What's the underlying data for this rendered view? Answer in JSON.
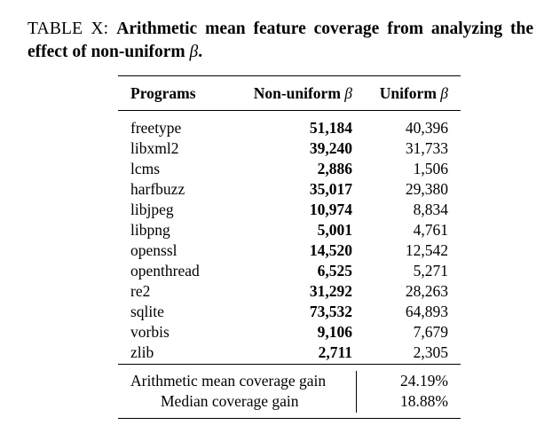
{
  "caption": {
    "label": "TABLE X:",
    "text": "Arithmetic mean feature coverage from analyzing the effect of non-uniform",
    "symbol": "β",
    "end": "."
  },
  "table": {
    "headers": {
      "programs": "Programs",
      "non_uniform": "Non-uniform",
      "uniform": "Uniform",
      "beta": "β"
    },
    "rows": [
      {
        "program": "freetype",
        "non_uniform": "51,184",
        "uniform": "40,396"
      },
      {
        "program": "libxml2",
        "non_uniform": "39,240",
        "uniform": "31,733"
      },
      {
        "program": "lcms",
        "non_uniform": "2,886",
        "uniform": "1,506"
      },
      {
        "program": "harfbuzz",
        "non_uniform": "35,017",
        "uniform": "29,380"
      },
      {
        "program": "libjpeg",
        "non_uniform": "10,974",
        "uniform": "8,834"
      },
      {
        "program": "libpng",
        "non_uniform": "5,001",
        "uniform": "4,761"
      },
      {
        "program": "openssl",
        "non_uniform": "14,520",
        "uniform": "12,542"
      },
      {
        "program": "openthread",
        "non_uniform": "6,525",
        "uniform": "5,271"
      },
      {
        "program": "re2",
        "non_uniform": "31,292",
        "uniform": "28,263"
      },
      {
        "program": "sqlite",
        "non_uniform": "73,532",
        "uniform": "64,893"
      },
      {
        "program": "vorbis",
        "non_uniform": "9,106",
        "uniform": "7,679"
      },
      {
        "program": "zlib",
        "non_uniform": "2,711",
        "uniform": "2,305"
      }
    ],
    "summary": [
      {
        "label": "Arithmetic mean coverage gain",
        "value": "24.19%"
      },
      {
        "label": "Median coverage gain",
        "value": "18.88%"
      }
    ]
  }
}
